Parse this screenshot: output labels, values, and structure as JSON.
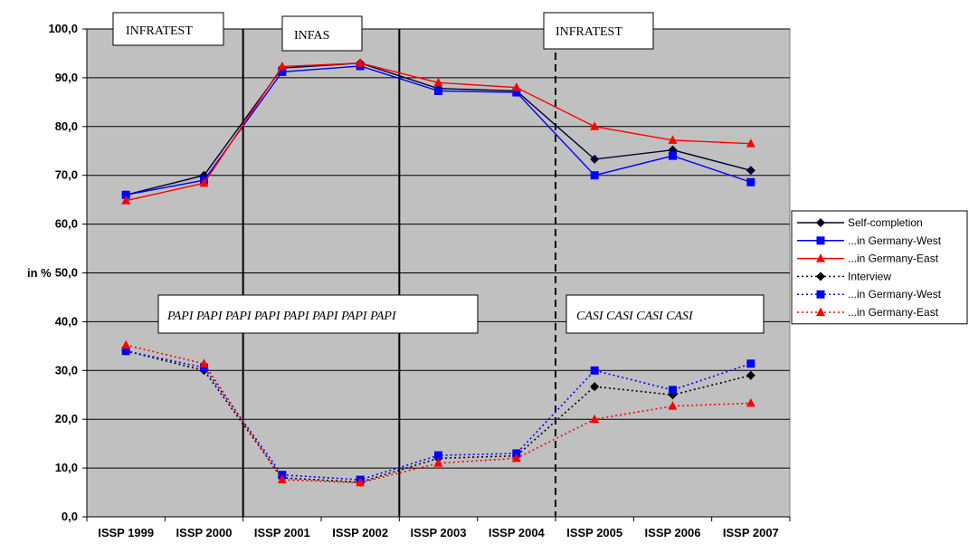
{
  "chart_data": {
    "type": "line",
    "categories": [
      "ISSP 1999",
      "ISSP 2000",
      "ISSP 2001",
      "ISSP 2002",
      "ISSP 2003",
      "ISSP 2004",
      "ISSP 2005",
      "ISSP 2006",
      "ISSP 2007"
    ],
    "ylabel": "in %",
    "ylim": [
      0,
      100
    ],
    "yticks": [
      "0,0",
      "10,0",
      "20,0",
      "30,0",
      "40,0",
      "50,0",
      "60,0",
      "70,0",
      "80,0",
      "90,0",
      "100,0"
    ],
    "grid": true,
    "legend_position": "right",
    "series": [
      {
        "name": "Self-completion",
        "values": [
          66.0,
          70.0,
          92.0,
          93.0,
          87.8,
          87.3,
          73.3,
          75.2,
          71.0
        ],
        "color": "#000033",
        "marker": "diamond",
        "dash": "solid"
      },
      {
        "name": "...in Germany-West",
        "values": [
          66.0,
          69.0,
          91.2,
          92.4,
          87.3,
          87.0,
          70.0,
          74.0,
          68.6
        ],
        "color": "#0000ff",
        "marker": "square",
        "dash": "solid"
      },
      {
        "name": "...in Germany-East",
        "values": [
          64.8,
          68.4,
          92.3,
          93.0,
          89.0,
          88.0,
          80.0,
          77.2,
          76.5
        ],
        "color": "#ff0000",
        "marker": "triangle",
        "dash": "solid"
      },
      {
        "name": "Interview",
        "values": [
          34.0,
          30.0,
          8.0,
          7.1,
          12.0,
          12.5,
          26.7,
          25.0,
          29.0
        ],
        "color": "#000000",
        "marker": "diamond",
        "dash": "dotted"
      },
      {
        "name": "...in Germany-West",
        "values": [
          34.0,
          30.6,
          8.6,
          7.6,
          12.6,
          13.0,
          30.0,
          26.0,
          31.4
        ],
        "color": "#0000ff",
        "marker": "square",
        "dash": "dotted"
      },
      {
        "name": "...in Germany-East",
        "values": [
          35.2,
          31.4,
          7.6,
          7.0,
          11.0,
          12.0,
          20.0,
          22.7,
          23.3
        ],
        "color": "#ff0000",
        "marker": "triangle",
        "dash": "dotted"
      }
    ],
    "annotations": {
      "institutes": [
        "INFRATEST",
        "INFAS",
        "INFRATEST"
      ],
      "modes": [
        "PAPI PAPI PAPI PAPI PAPI PAPI PAPI PAPI",
        "CASI CASI CASI CASI"
      ]
    }
  },
  "colors": {
    "plot_background": "#c0c0c0",
    "gridline": "#000000"
  }
}
